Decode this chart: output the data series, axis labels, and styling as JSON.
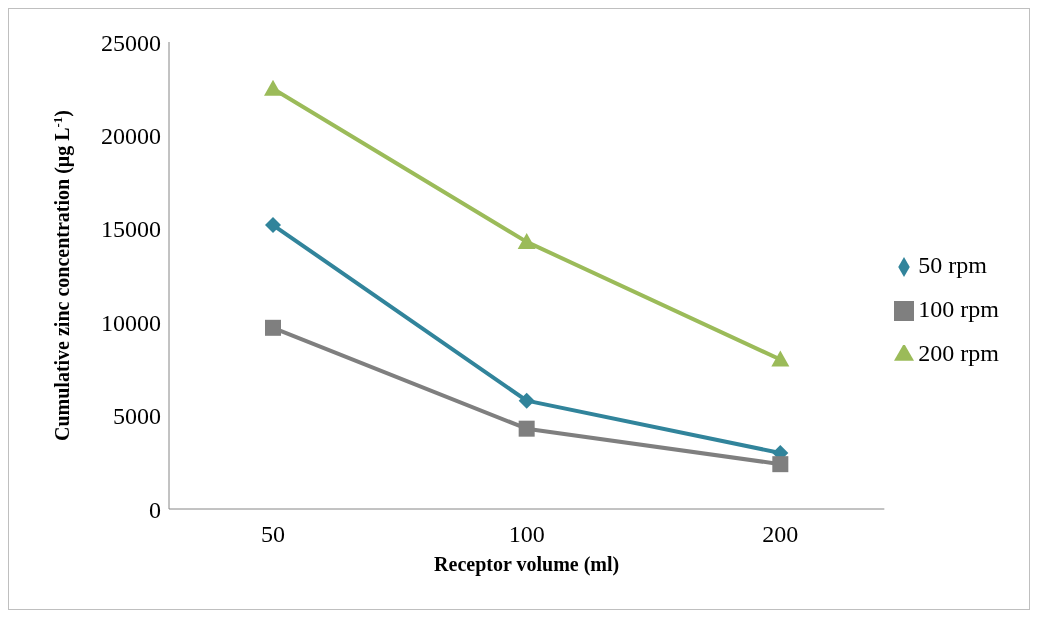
{
  "chart_data": {
    "type": "line",
    "xlabel": "Receptor volume (ml)",
    "ylabel": "Cumulative zinc concentration (μg L$^{-1}$)",
    "categories": [
      "50",
      "100",
      "200"
    ],
    "series": [
      {
        "name": "50 rpm",
        "color": "#31849b",
        "values": [
          15200,
          5800,
          3000
        ],
        "marker": "diamond"
      },
      {
        "name": "100 rpm",
        "color": "#7f7f7f",
        "values": [
          9700,
          4300,
          2400
        ],
        "marker": "square"
      },
      {
        "name": "200 rpm",
        "color": "#9bbb59",
        "values": [
          22500,
          14300,
          8000
        ],
        "marker": "triangle"
      }
    ],
    "ylim": [
      0,
      25000
    ],
    "yticks": [
      0,
      5000,
      10000,
      15000,
      20000,
      25000
    ],
    "grid": false,
    "legend": "right",
    "line_style": "solid"
  }
}
